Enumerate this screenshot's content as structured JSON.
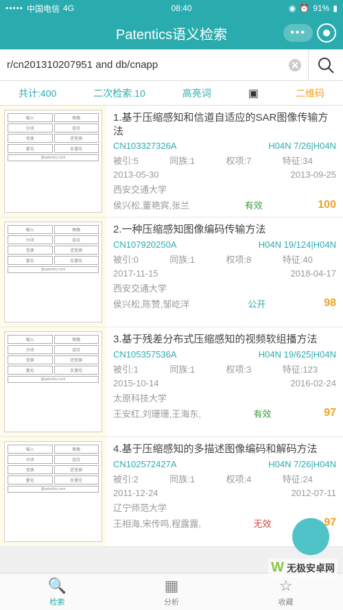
{
  "status": {
    "carrier": "中国电信",
    "network": "4G",
    "time": "08:40",
    "battery": "91%"
  },
  "header": {
    "title": "Patentics语义检索"
  },
  "search": {
    "query": "r/cn201310207951 and db/cnapp"
  },
  "filters": {
    "total": "共计:400",
    "secondary": "二次检索.10",
    "highlight": "高亮词",
    "qrcode": "二维码"
  },
  "results": [
    {
      "title": "1.基于压缩感知和信道自适应的SAR图像传输方法",
      "code": "CN103327326A",
      "classification": "H04N 7/26|H04N",
      "cited_label": "被引:5",
      "family_label": "同族:1",
      "claims_label": "权项:7",
      "features_label": "特征:34",
      "date1": "2013-05-30",
      "date2": "2013-09-25",
      "org": "西安交通大学",
      "authors": "侯兴松,董艳宾,张兰",
      "status": "有效",
      "status_class": "status-valid",
      "score": "100"
    },
    {
      "title": "2.一种压缩感知图像编码传输方法",
      "code": "CN107920250A",
      "classification": "H04N 19/124|H04N",
      "cited_label": "被引:0",
      "family_label": "同族:1",
      "claims_label": "权项:8",
      "features_label": "特征:40",
      "date1": "2017-11-15",
      "date2": "2018-04-17",
      "org": "西安交通大学",
      "authors": "侯兴松,陈赞,邹屹洋",
      "status": "公开",
      "status_class": "status-open",
      "score": "98"
    },
    {
      "title": "3.基于残差分布式压缩感知的视频软组播方法",
      "code": "CN105357536A",
      "classification": "H04N 19/625|H04N",
      "cited_label": "被引:1",
      "family_label": "同族:1",
      "claims_label": "权项:3",
      "features_label": "特征:123",
      "date1": "2015-10-14",
      "date2": "2016-02-24",
      "org": "太原科技大学",
      "authors": "王安红,刘珊珊,王海东,",
      "status": "有效",
      "status_class": "status-valid",
      "score": "97"
    },
    {
      "title": "4.基于压缩感知的多描述图像编码和解码方法",
      "code": "CN102572427A",
      "classification": "H04N 7/26|H04N",
      "cited_label": "被引:2",
      "family_label": "同族:1",
      "claims_label": "权项:4",
      "features_label": "特征:24",
      "date1": "2011-12-24",
      "date2": "2012-07-11",
      "org": "辽宁师范大学",
      "authors": "王相海,宋传鸣,程露露,",
      "status": "无效",
      "status_class": "status-invalid",
      "score": "97"
    }
  ],
  "tabs": {
    "search": "检索",
    "analysis": "分析",
    "favorites": "收藏"
  },
  "watermark": "无极安卓网"
}
